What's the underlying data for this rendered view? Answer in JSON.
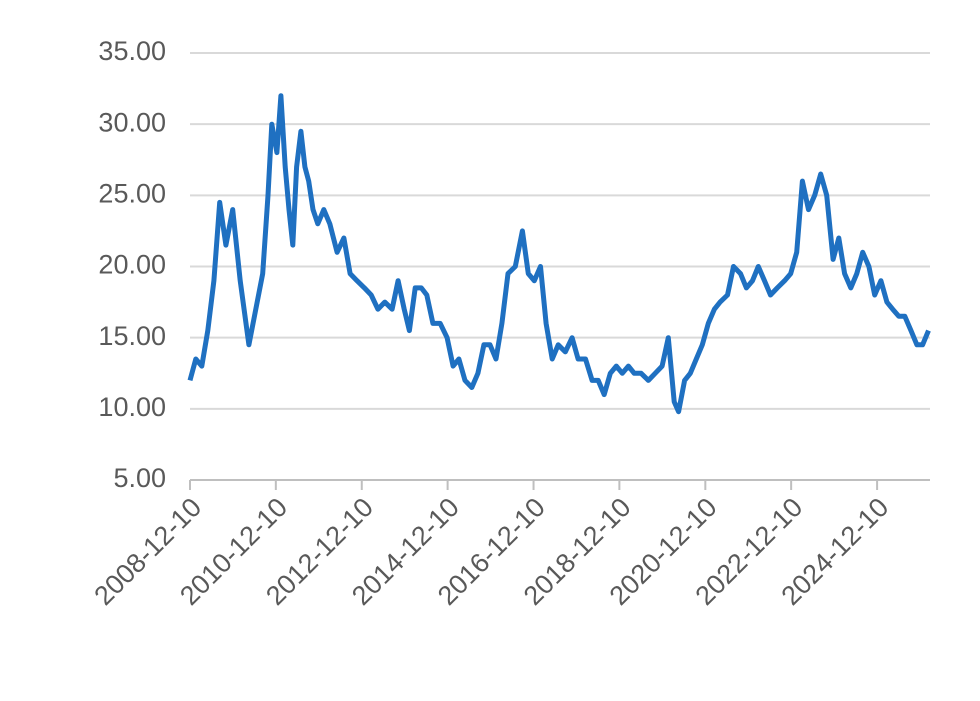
{
  "chart_data": {
    "type": "line",
    "x": [
      "2008-12-10",
      "2009-01-28",
      "2009-03-20",
      "2009-05-10",
      "2009-07-01",
      "2009-08-20",
      "2009-10-11",
      "2009-12-08",
      "2010-02-10",
      "2010-04-25",
      "2010-06-23",
      "2010-08-20",
      "2010-10-04",
      "2010-11-06",
      "2010-12-19",
      "2011-01-22",
      "2011-02-28",
      "2011-04-01",
      "2011-05-03",
      "2011-06-05",
      "2011-07-11",
      "2011-08-14",
      "2011-09-16",
      "2011-10-22",
      "2011-12-02",
      "2012-01-22",
      "2012-03-13",
      "2012-05-14",
      "2012-07-11",
      "2012-09-02",
      "2012-10-30",
      "2013-01-01",
      "2013-02-28",
      "2013-04-26",
      "2013-06-24",
      "2013-08-25",
      "2013-10-15",
      "2013-12-06",
      "2014-01-19",
      "2014-03-09",
      "2014-04-30",
      "2014-06-16",
      "2014-08-07",
      "2014-10-08",
      "2014-12-06",
      "2015-01-26",
      "2015-03-16",
      "2015-05-07",
      "2015-07-04",
      "2015-08-25",
      "2015-10-15",
      "2015-12-06",
      "2016-01-26",
      "2016-03-16",
      "2016-05-07",
      "2016-07-08",
      "2016-09-06",
      "2016-10-26",
      "2016-12-16",
      "2017-02-07",
      "2017-03-27",
      "2017-05-18",
      "2017-07-08",
      "2017-09-06",
      "2017-11-03",
      "2017-12-24",
      "2018-02-25",
      "2018-04-22",
      "2018-06-13",
      "2018-08-03",
      "2018-09-24",
      "2018-11-14",
      "2019-01-04",
      "2019-02-25",
      "2019-04-15",
      "2019-06-13",
      "2019-08-14",
      "2019-10-11",
      "2019-12-08",
      "2020-01-30",
      "2020-03-20",
      "2020-04-27",
      "2020-06-17",
      "2020-08-04",
      "2020-09-24",
      "2020-11-14",
      "2021-01-04",
      "2021-02-25",
      "2021-04-15",
      "2021-06-17",
      "2021-08-07",
      "2021-10-05",
      "2021-11-24",
      "2022-01-15",
      "2022-03-06",
      "2022-04-27",
      "2022-06-17",
      "2022-08-14",
      "2022-10-15",
      "2022-12-06",
      "2023-01-26",
      "2023-03-16",
      "2023-05-07",
      "2023-06-28",
      "2023-08-18",
      "2023-10-08",
      "2023-12-02",
      "2024-01-19",
      "2024-03-09",
      "2024-04-30",
      "2024-06-20",
      "2024-08-10",
      "2024-10-01",
      "2024-11-20",
      "2025-01-11",
      "2025-03-03",
      "2025-04-22",
      "2025-06-13",
      "2025-08-03",
      "2025-09-24",
      "2025-11-14",
      "2026-01-01",
      "2026-02-20"
    ],
    "values": [
      12,
      13.5,
      13,
      15.5,
      19,
      24.5,
      21.5,
      24,
      19,
      14.5,
      17,
      19.5,
      25,
      30,
      28,
      32,
      27,
      24,
      21.5,
      27,
      29.5,
      27,
      26,
      24,
      23,
      24,
      23,
      21,
      22,
      19.5,
      19,
      18.5,
      18,
      17,
      17.5,
      17,
      19,
      17,
      15.5,
      18.5,
      18.5,
      18,
      16,
      16,
      15,
      13,
      13.5,
      12,
      11.5,
      12.5,
      14.5,
      14.5,
      13.5,
      16,
      19.5,
      20,
      22.5,
      19.5,
      19,
      20,
      16,
      13.5,
      14.5,
      14,
      15,
      13.5,
      13.5,
      12,
      12,
      11,
      12.5,
      13,
      12.5,
      13,
      12.5,
      12.5,
      12,
      12.5,
      13,
      15,
      10.5,
      9.8,
      12,
      12.5,
      13.5,
      14.5,
      16,
      17,
      17.5,
      18,
      20,
      19.5,
      18.5,
      19,
      20,
      19,
      18,
      18.5,
      19,
      19.5,
      21,
      26,
      24,
      25,
      26.5,
      25,
      20.5,
      22,
      19.5,
      18.5,
      19.5,
      21,
      20,
      18,
      19,
      17.5,
      17,
      16.5,
      16.5,
      15.5,
      14.5,
      14.5,
      15.5
    ],
    "color": "#1f70c1",
    "xlim": [
      "2008-12-10",
      "2026-03-05"
    ],
    "xticks": [
      "2008-12-10",
      "2010-12-10",
      "2012-12-10",
      "2014-12-10",
      "2016-12-10",
      "2018-12-10",
      "2020-12-10",
      "2022-12-10",
      "2024-12-10"
    ],
    "ylim": [
      5,
      35
    ],
    "yticks": [
      {
        "value": 5,
        "label": "5.00"
      },
      {
        "value": 10,
        "label": "10.00"
      },
      {
        "value": 15,
        "label": "15.00"
      },
      {
        "value": 20,
        "label": "20.00"
      },
      {
        "value": 25,
        "label": "25.00"
      },
      {
        "value": 30,
        "label": "30.00"
      },
      {
        "value": 35,
        "label": "35.00"
      }
    ],
    "grid": true
  }
}
